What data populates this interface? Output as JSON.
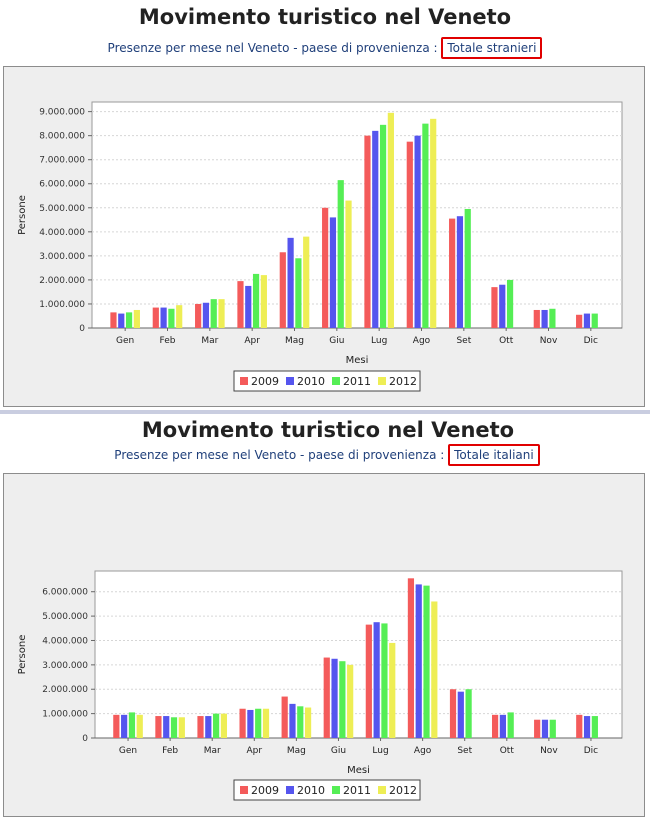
{
  "charts": [
    {
      "title": "Movimento turistico nel Veneto",
      "subtitle_label": "Presenze per mese nel Veneto - paese di provenienza :",
      "selected_origin": "Totale stranieri"
    },
    {
      "title": "Movimento turistico nel Veneto",
      "subtitle_label": "Presenze per mese nel Veneto - paese di provenienza :",
      "selected_origin": "Totale italiani"
    }
  ],
  "colors": {
    "2009": "#f45b5b",
    "2010": "#5555ee",
    "2011": "#55ee55",
    "2012": "#eeee55",
    "bg": "#eeeeee",
    "plot": "#ffffff"
  },
  "chart_data": [
    {
      "type": "bar",
      "xlabel": "Mesi",
      "ylabel": "Persone",
      "ylim": [
        0,
        9400000
      ],
      "yticks": [
        0,
        1000000,
        2000000,
        3000000,
        4000000,
        5000000,
        6000000,
        7000000,
        8000000,
        9000000
      ],
      "ytick_labels": [
        "0",
        "1.000.000",
        "2.000.000",
        "3.000.000",
        "4.000.000",
        "5.000.000",
        "6.000.000",
        "7.000.000",
        "8.000.000",
        "9.000.000"
      ],
      "categories": [
        "Gen",
        "Feb",
        "Mar",
        "Apr",
        "Mag",
        "Giu",
        "Lug",
        "Ago",
        "Set",
        "Ott",
        "Nov",
        "Dic"
      ],
      "series": [
        {
          "name": "2009",
          "values": [
            650000,
            850000,
            1000000,
            1950000,
            3150000,
            5000000,
            8000000,
            7750000,
            4550000,
            1700000,
            750000,
            550000
          ]
        },
        {
          "name": "2010",
          "values": [
            600000,
            850000,
            1050000,
            1750000,
            3750000,
            4600000,
            8200000,
            8000000,
            4650000,
            1800000,
            750000,
            600000
          ]
        },
        {
          "name": "2011",
          "values": [
            650000,
            800000,
            1200000,
            2250000,
            2900000,
            6150000,
            8450000,
            8500000,
            4950000,
            2000000,
            800000,
            600000
          ]
        },
        {
          "name": "2012",
          "values": [
            750000,
            950000,
            1200000,
            2200000,
            3800000,
            5300000,
            8950000,
            8700000,
            null,
            null,
            null,
            null
          ]
        }
      ],
      "legend": "bottom"
    },
    {
      "type": "bar",
      "xlabel": "Mesi",
      "ylabel": "Persone",
      "ylim": [
        0,
        6850000
      ],
      "yticks": [
        0,
        1000000,
        2000000,
        3000000,
        4000000,
        5000000,
        6000000
      ],
      "ytick_labels": [
        "0",
        "1.000.000",
        "2.000.000",
        "3.000.000",
        "4.000.000",
        "5.000.000",
        "6.000.000"
      ],
      "categories": [
        "Gen",
        "Feb",
        "Mar",
        "Apr",
        "Mag",
        "Giu",
        "Lug",
        "Ago",
        "Set",
        "Ott",
        "Nov",
        "Dic"
      ],
      "series": [
        {
          "name": "2009",
          "values": [
            950000,
            900000,
            900000,
            1200000,
            1700000,
            3300000,
            4650000,
            6550000,
            2000000,
            950000,
            750000,
            950000
          ]
        },
        {
          "name": "2010",
          "values": [
            950000,
            900000,
            900000,
            1150000,
            1400000,
            3250000,
            4750000,
            6300000,
            1900000,
            950000,
            750000,
            900000
          ]
        },
        {
          "name": "2011",
          "values": [
            1050000,
            850000,
            1000000,
            1200000,
            1300000,
            3150000,
            4700000,
            6250000,
            2000000,
            1050000,
            750000,
            900000
          ]
        },
        {
          "name": "2012",
          "values": [
            950000,
            850000,
            1000000,
            1200000,
            1250000,
            3000000,
            3900000,
            5600000,
            null,
            null,
            null,
            null
          ]
        }
      ],
      "legend": "bottom"
    }
  ]
}
